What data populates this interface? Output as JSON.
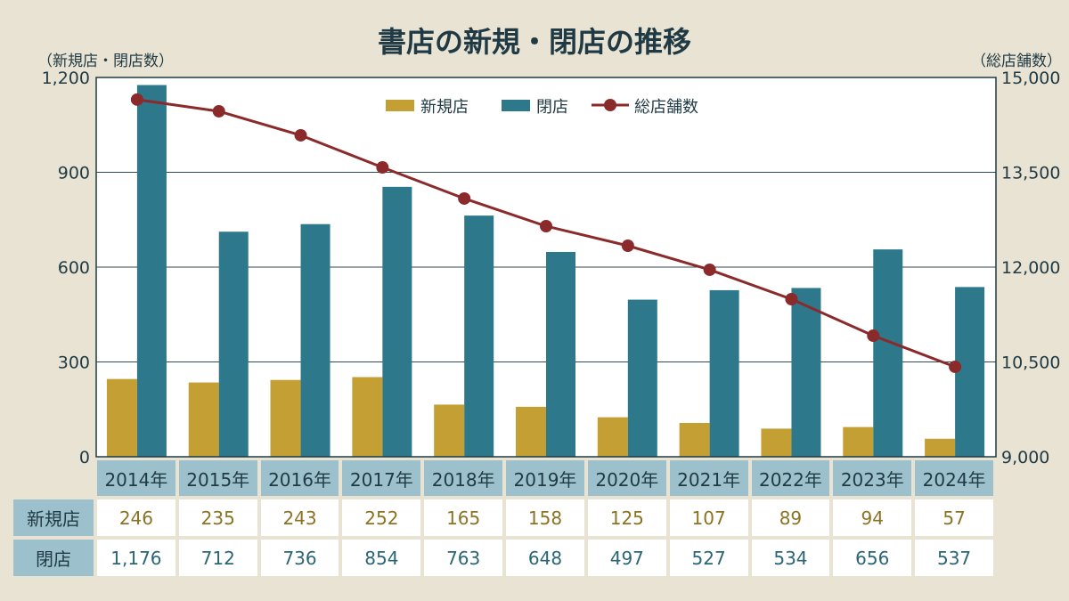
{
  "chart_data": {
    "type": "bar+line",
    "title": "書店の新規・閉店の推移",
    "ylabel_left": "（新規店・閉店数）",
    "ylabel_right": "（総店舗数）",
    "ylim_left": [
      0,
      1200
    ],
    "ylim_right": [
      9000,
      15000
    ],
    "yticks_left": [
      "0",
      "300",
      "600",
      "900",
      "1,200"
    ],
    "yticks_right": [
      "9,000",
      "10,500",
      "12,000",
      "13,500",
      "15,000"
    ],
    "categories": [
      "2014年",
      "2015年",
      "2016年",
      "2017年",
      "2018年",
      "2019年",
      "2020年",
      "2021年",
      "2022年",
      "2023年",
      "2024年"
    ],
    "legend_position": "top-center",
    "series": [
      {
        "name": "新規店",
        "type": "bar",
        "color": "#c49f33",
        "values": [
          246,
          235,
          243,
          252,
          165,
          158,
          125,
          107,
          89,
          94,
          57
        ],
        "labels": [
          "246",
          "235",
          "243",
          "252",
          "165",
          "158",
          "125",
          "107",
          "89",
          "94",
          "57"
        ]
      },
      {
        "name": "閉店",
        "type": "bar",
        "color": "#2e788c",
        "values": [
          1176,
          712,
          736,
          854,
          763,
          648,
          497,
          527,
          534,
          656,
          537
        ],
        "labels": [
          "1,176",
          "712",
          "736",
          "854",
          "763",
          "648",
          "497",
          "527",
          "534",
          "656",
          "537"
        ]
      },
      {
        "name": "総店舗数",
        "type": "line",
        "axis": "right",
        "color": "#8b2a2a",
        "values": [
          14650,
          14465,
          14085,
          13577,
          13085,
          12648,
          12338,
          11958,
          11493,
          10915,
          10423
        ]
      }
    ]
  }
}
